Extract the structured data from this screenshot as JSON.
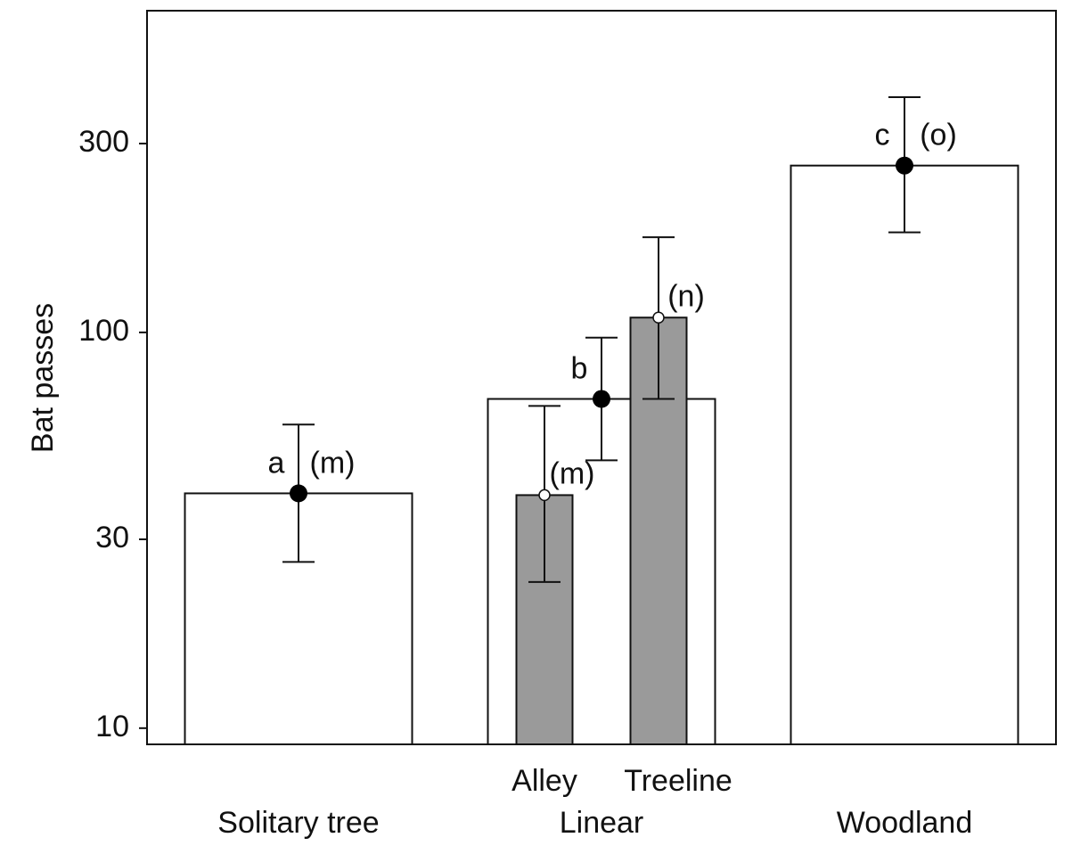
{
  "chart_data": {
    "type": "bar",
    "ylabel": "Bat passes",
    "log_scale": true,
    "ylim": [
      9.1,
      650
    ],
    "yticks": [
      10,
      30,
      100,
      300
    ],
    "grid": false,
    "categories": [
      "Solitary tree",
      "Linear",
      "Woodland"
    ],
    "color": "#ffffff",
    "point_color": "#000000",
    "values": [
      39.2,
      67.9,
      264
    ],
    "lower": [
      26.3,
      47.5,
      179
    ],
    "upper": [
      58.5,
      97,
      393
    ],
    "letters": [
      "a",
      "b",
      "c"
    ],
    "groups": [
      "(m)",
      null,
      "(o)"
    ],
    "subgroups": {
      "parent": 1,
      "categories": [
        "Alley",
        "Treeline"
      ],
      "color": "#9a9a9a",
      "point_color": "#ffffff",
      "values": [
        38.8,
        109
      ],
      "lower": [
        23.4,
        67.9
      ],
      "upper": [
        65.2,
        174
      ],
      "groups": [
        "(m)",
        "(n)"
      ]
    }
  }
}
